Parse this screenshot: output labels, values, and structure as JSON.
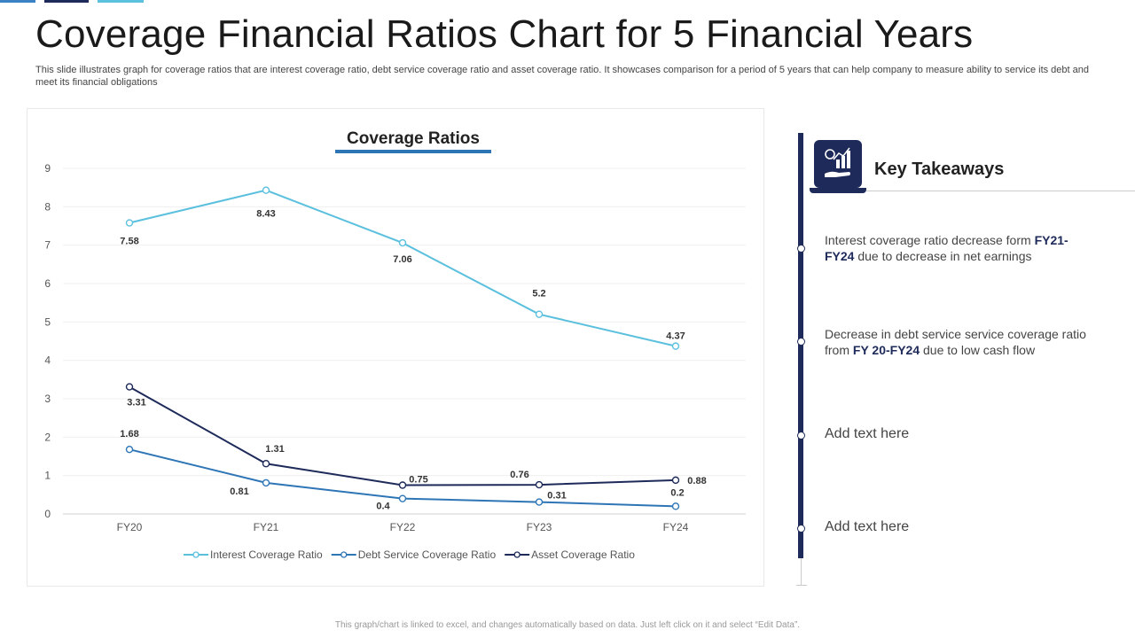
{
  "header": {
    "title": "Coverage Financial Ratios Chart for 5 Financial Years",
    "subtitle": "This slide illustrates graph for coverage ratios that are interest coverage ratio, debt service coverage ratio and asset coverage ratio. It showcases comparison for a period of 5 years that can help company to measure ability to service its debt and meet its financial obligations"
  },
  "chart_data": {
    "type": "line",
    "title": "Coverage Ratios",
    "categories": [
      "FY20",
      "FY21",
      "FY22",
      "FY23",
      "FY24"
    ],
    "ylim": [
      0,
      9
    ],
    "yticks": [
      "0",
      "1",
      "2",
      "3",
      "4",
      "5",
      "6",
      "7",
      "8",
      "9"
    ],
    "grid": true,
    "legend_position": "bottom",
    "series": [
      {
        "name": "Interest Coverage Ratio",
        "color": "#5bc0de",
        "values": [
          7.58,
          8.43,
          7.06,
          5.2,
          4.37
        ],
        "labels": [
          "7.58",
          "8.43",
          "7.06",
          "5.2",
          "4.37"
        ]
      },
      {
        "name": "Debt Service Coverage Ratio",
        "color": "#2e75b6",
        "values": [
          1.68,
          0.81,
          0.4,
          0.31,
          0.2
        ],
        "labels": [
          "1.68",
          "0.81",
          "0.4",
          "0.31",
          "0.2"
        ]
      },
      {
        "name": "Asset Coverage Ratio",
        "color": "#1e2a5a",
        "values": [
          3.31,
          1.31,
          0.75,
          0.76,
          0.88
        ],
        "labels": [
          "3.31",
          "1.31",
          "0.75",
          "0.76",
          "0.88"
        ]
      }
    ]
  },
  "takeaways": {
    "heading": "Key Takeaways",
    "icon": "money-growth-icon",
    "items": [
      {
        "pre": "Interest coverage ratio decrease form ",
        "bold": "FY21-FY24",
        "post": " due to decrease in net earnings"
      },
      {
        "pre": "Decrease in debt service service coverage ratio from ",
        "bold": "FY 20-FY24",
        "post": " due to low cash flow"
      },
      {
        "pre": "Add text here",
        "bold": "",
        "post": ""
      },
      {
        "pre": "Add text here",
        "bold": "",
        "post": ""
      }
    ]
  },
  "footer": {
    "note": "This graph/chart is linked to excel, and changes automatically based on data. Just left click on it and select “Edit Data”."
  },
  "colors": {
    "accent_dark": "#1e2a5a",
    "accent_mid": "#2e75b6",
    "accent_light": "#5bc0de"
  }
}
